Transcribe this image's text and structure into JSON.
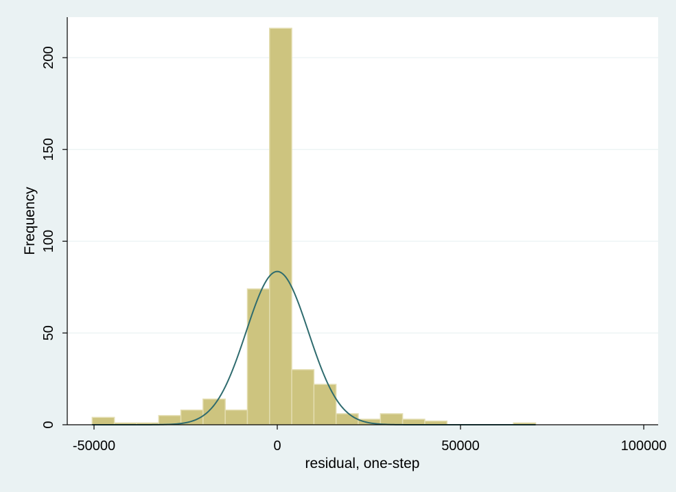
{
  "chart_data": {
    "type": "bar",
    "subtype": "histogram",
    "xlabel": "residual, one-step",
    "ylabel": "Frequency",
    "xlim": [
      -56000,
      103000
    ],
    "ylim": [
      0,
      222
    ],
    "x_ticks": [
      -50000,
      0,
      50000,
      100000
    ],
    "x_tick_labels": [
      "-50000",
      "0",
      "50000",
      "100000"
    ],
    "y_ticks": [
      0,
      50,
      100,
      150,
      200
    ],
    "y_tick_labels": [
      "0",
      "50",
      "100",
      "150",
      "200"
    ],
    "grid": "horizontal",
    "bin_width": 6050,
    "bins": [
      {
        "x0": -50500,
        "count": 4
      },
      {
        "x0": -44450,
        "count": 1
      },
      {
        "x0": -38400,
        "count": 1
      },
      {
        "x0": -32350,
        "count": 5
      },
      {
        "x0": -26300,
        "count": 8
      },
      {
        "x0": -20250,
        "count": 14
      },
      {
        "x0": -14200,
        "count": 8
      },
      {
        "x0": -8150,
        "count": 74
      },
      {
        "x0": -2100,
        "count": 216
      },
      {
        "x0": 3950,
        "count": 30
      },
      {
        "x0": 10000,
        "count": 22
      },
      {
        "x0": 16050,
        "count": 6
      },
      {
        "x0": 22100,
        "count": 3
      },
      {
        "x0": 28150,
        "count": 6
      },
      {
        "x0": 34200,
        "count": 3
      },
      {
        "x0": 40250,
        "count": 2
      },
      {
        "x0": 46300,
        "count": 0
      },
      {
        "x0": 52350,
        "count": 0
      },
      {
        "x0": 58400,
        "count": 0
      },
      {
        "x0": 64450,
        "count": 1
      }
    ],
    "normal_curve": {
      "mean": 0,
      "sd": 8500,
      "peak": 83.5
    },
    "colors": {
      "bar_fill": "#cdc47f",
      "bar_stroke": "#e3ddb0",
      "curve": "#2e6b6e",
      "background": "#eaf2f3",
      "plot_background": "#ffffff",
      "grid": "#eaf2f3",
      "axis": "#000000"
    }
  }
}
